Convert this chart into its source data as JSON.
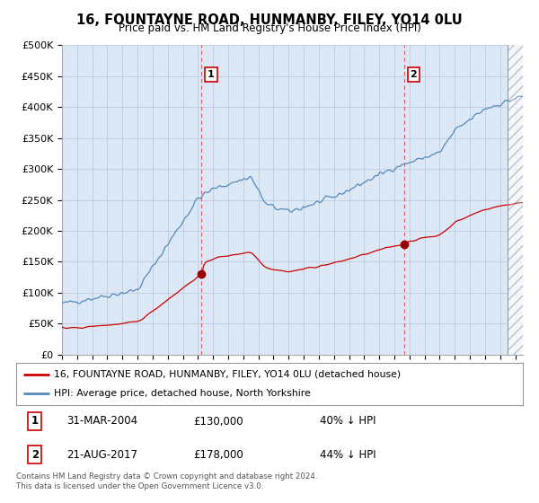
{
  "title": "16, FOUNTAYNE ROAD, HUNMANBY, FILEY, YO14 0LU",
  "subtitle": "Price paid vs. HM Land Registry's House Price Index (HPI)",
  "ylabel_ticks": [
    "£0",
    "£50K",
    "£100K",
    "£150K",
    "£200K",
    "£250K",
    "£300K",
    "£350K",
    "£400K",
    "£450K",
    "£500K"
  ],
  "ytick_vals": [
    0,
    50000,
    100000,
    150000,
    200000,
    250000,
    300000,
    350000,
    400000,
    450000,
    500000
  ],
  "ylim": [
    0,
    500000
  ],
  "xlim_start": 1995.0,
  "xlim_end": 2025.5,
  "sale1": {
    "date_num": 2004.24,
    "price": 130000,
    "label": "1"
  },
  "sale2": {
    "date_num": 2017.64,
    "price": 178000,
    "label": "2"
  },
  "legend_line1": "16, FOUNTAYNE ROAD, HUNMANBY, FILEY, YO14 0LU (detached house)",
  "legend_line2": "HPI: Average price, detached house, North Yorkshire",
  "table_rows": [
    [
      "1",
      "31-MAR-2004",
      "£130,000",
      "40% ↓ HPI"
    ],
    [
      "2",
      "21-AUG-2017",
      "£178,000",
      "44% ↓ HPI"
    ]
  ],
  "footer": "Contains HM Land Registry data © Crown copyright and database right 2024.\nThis data is licensed under the Open Government Licence v3.0.",
  "line_color_red": "#cc0000",
  "line_color_blue": "#5588bb",
  "dashed_color": "#cc0000",
  "bg_chart": "#dce8f5",
  "bg_white": "#ffffff",
  "grid_color": "#bbccdd"
}
